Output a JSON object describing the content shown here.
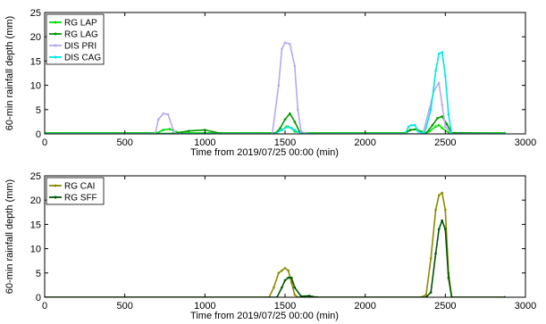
{
  "chart_data": [
    {
      "type": "line",
      "xlabel": "Time from 2019/07/25 00:00 (min)",
      "ylabel": "60-min rainfall depth (mm)",
      "xlim": [
        0,
        3000
      ],
      "ylim": [
        0,
        25
      ],
      "xticks": [
        "0",
        "500",
        "1000",
        "1500",
        "2000",
        "2500",
        "3000"
      ],
      "yticks": [
        "0",
        "5",
        "10",
        "15",
        "20",
        "25"
      ],
      "grid": false,
      "legend_position": "top-left",
      "series": [
        {
          "name": "RG LAP",
          "color": "#00dd00",
          "x": [
            0,
            700,
            740,
            780,
            820,
            860,
            900,
            1440,
            1480,
            1510,
            1540,
            1560,
            1600,
            2250,
            2280,
            2320,
            2350,
            2380,
            2400,
            2440,
            2460,
            2480,
            2520,
            2560,
            2870
          ],
          "y": [
            0.2,
            0.2,
            0.8,
            1.0,
            0.4,
            0.2,
            0.2,
            0.2,
            0.8,
            1.5,
            1.2,
            0.5,
            0.2,
            0.2,
            0.8,
            0.9,
            0.5,
            0.2,
            0.5,
            1.5,
            1.8,
            1.2,
            0.3,
            0.2,
            0.2
          ]
        },
        {
          "name": "RG LAG",
          "color": "#009900",
          "x": [
            0,
            800,
            900,
            1000,
            1100,
            1440,
            1470,
            1500,
            1530,
            1560,
            1590,
            1620,
            2250,
            2280,
            2320,
            2350,
            2380,
            2420,
            2450,
            2480,
            2510,
            2540,
            2870
          ],
          "y": [
            0.1,
            0.1,
            0.6,
            0.8,
            0.1,
            0.1,
            1.2,
            3.0,
            4.2,
            2.5,
            0.5,
            0.1,
            0.1,
            0.8,
            1.0,
            0.3,
            0.1,
            1.8,
            3.2,
            3.6,
            2.0,
            0.2,
            0.1
          ]
        },
        {
          "name": "DIS PRI",
          "color": "#b8a8f0",
          "x": [
            0,
            690,
            710,
            740,
            770,
            800,
            820,
            1420,
            1460,
            1480,
            1500,
            1530,
            1560,
            1580,
            1600,
            1640,
            2360,
            2400,
            2430,
            2460,
            2480,
            2500,
            2540,
            2870
          ],
          "y": [
            0,
            0,
            3.0,
            4.2,
            4.0,
            1.0,
            0,
            0,
            10.0,
            17.5,
            18.8,
            18.5,
            14.0,
            5.0,
            0.5,
            0,
            0,
            5.0,
            9.0,
            10.5,
            6.0,
            1.5,
            0,
            0
          ]
        },
        {
          "name": "DIS CAG",
          "color": "#00e8e8",
          "x": [
            0,
            1440,
            1480,
            1520,
            1560,
            1600,
            2250,
            2270,
            2290,
            2310,
            2330,
            2370,
            2410,
            2440,
            2460,
            2480,
            2500,
            2520,
            2540,
            2870
          ],
          "y": [
            0,
            0,
            0.8,
            1.5,
            0.8,
            0,
            0,
            1.5,
            1.8,
            1.8,
            0.5,
            0,
            5.0,
            13.0,
            16.5,
            16.8,
            12.0,
            4.0,
            0,
            0
          ]
        }
      ]
    },
    {
      "type": "line",
      "xlabel": "Time from 2019/07/25 00:00 (min)",
      "ylabel": "60-min rainfall depth (mm)",
      "xlim": [
        0,
        3000
      ],
      "ylim": [
        0,
        25
      ],
      "xticks": [
        "0",
        "500",
        "1000",
        "1500",
        "2000",
        "2500",
        "3000"
      ],
      "yticks": [
        "0",
        "5",
        "10",
        "15",
        "20",
        "25"
      ],
      "grid": false,
      "legend_position": "top-left",
      "series": [
        {
          "name": "RG CAI",
          "color": "#8b8b00",
          "x": [
            0,
            1400,
            1430,
            1460,
            1480,
            1500,
            1520,
            1540,
            1560,
            1580,
            2350,
            2380,
            2410,
            2440,
            2460,
            2480,
            2500,
            2520,
            2540,
            2870
          ],
          "y": [
            0,
            0,
            2.0,
            5.0,
            5.5,
            6.0,
            5.5,
            3.0,
            0.5,
            0,
            0,
            0.5,
            8.0,
            18.0,
            21.0,
            21.5,
            18.0,
            5.0,
            0,
            0
          ]
        },
        {
          "name": "RG SFF",
          "color": "#005500",
          "x": [
            0,
            1450,
            1480,
            1500,
            1520,
            1540,
            1560,
            1600,
            1650,
            1700,
            2380,
            2410,
            2440,
            2460,
            2480,
            2500,
            2520,
            2540,
            2870
          ],
          "y": [
            0,
            0,
            2.0,
            3.5,
            4.0,
            4.0,
            2.0,
            0.2,
            0.3,
            0,
            0,
            1.0,
            9.0,
            14.0,
            15.8,
            14.0,
            4.0,
            0,
            0
          ]
        }
      ]
    }
  ]
}
